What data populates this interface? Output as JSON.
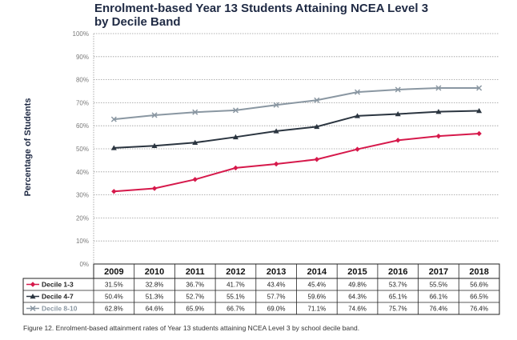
{
  "title_line1": "Enrolment-based Year 13 Students Attaining NCEA Level 3",
  "title_line2": "by Decile Band",
  "caption": "Figure 12. Enrolment-based attainment rates of Year 13 students attaining NCEA Level 3 by school decile band.",
  "chart_data": {
    "type": "line",
    "title": "Enrolment-based Year 13 Students Attaining NCEA Level 3 by Decile Band",
    "ylabel": "Percentage of Students",
    "ylim": [
      0,
      100
    ],
    "yticks": [
      "0%",
      "10%",
      "20%",
      "30%",
      "40%",
      "50%",
      "60%",
      "70%",
      "80%",
      "90%",
      "100%"
    ],
    "grid": true,
    "categories": [
      "2009",
      "2010",
      "2011",
      "2012",
      "2013",
      "2014",
      "2015",
      "2016",
      "2017",
      "2018"
    ],
    "series": [
      {
        "name": "Decile 1-3",
        "color": "#d6194b",
        "marker": "diamond",
        "values": [
          31.5,
          32.8,
          36.7,
          41.7,
          43.4,
          45.4,
          49.8,
          53.7,
          55.5,
          56.6
        ],
        "labels": [
          "31.5%",
          "32.8%",
          "36.7%",
          "41.7%",
          "43.4%",
          "45.4%",
          "49.8%",
          "53.7%",
          "55.5%",
          "56.6%"
        ]
      },
      {
        "name": "Decile 4-7",
        "color": "#2b3540",
        "marker": "triangle",
        "values": [
          50.4,
          51.3,
          52.7,
          55.1,
          57.7,
          59.6,
          64.3,
          65.1,
          66.1,
          66.5
        ],
        "labels": [
          "50.4%",
          "51.3%",
          "52.7%",
          "55.1%",
          "57.7%",
          "59.6%",
          "64.3%",
          "65.1%",
          "66.1%",
          "66.5%"
        ]
      },
      {
        "name": "Decile 8-10",
        "color": "#8a97a2",
        "marker": "x",
        "values": [
          62.8,
          64.6,
          65.9,
          66.7,
          69.0,
          71.1,
          74.6,
          75.7,
          76.4,
          76.4
        ],
        "labels": [
          "62.8%",
          "64.6%",
          "65.9%",
          "66.7%",
          "69.0%",
          "71.1%",
          "74.6%",
          "75.7%",
          "76.4%",
          "76.4%"
        ]
      }
    ]
  }
}
